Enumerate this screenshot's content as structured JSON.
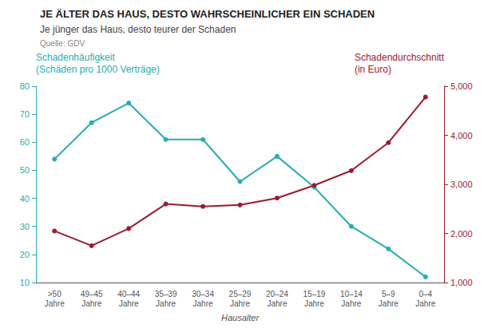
{
  "chart_data": {
    "type": "line",
    "title": "JE ÄLTER DAS HAUS, DESTO WAHRSCHEINLICHER EIN SCHADEN",
    "subtitle": "Je jünger das Haus, desto teurer der Schaden",
    "source": "Quelle: GDV",
    "xlabel": "Hausalter",
    "categories": [
      ">50\nJahre",
      "49–45\nJahre",
      "40–44\nJahre",
      "35–39\nJahre",
      "30–34\nJahre",
      "25–29\nJahre",
      "20–24\nJahre",
      "15–19\nJahre",
      "10–14\nJahre",
      "5–9\nJahre",
      "0–4\nJahre"
    ],
    "series": [
      {
        "name": "Schadenhäufigkeit\n(Schäden pro 1000 Verträge)",
        "color": "#29ABB8",
        "marker": "circle",
        "values": [
          54,
          67,
          74,
          61,
          61,
          46,
          55,
          44,
          30,
          22,
          12
        ]
      },
      {
        "name": "Schadendurchschnitt\n(in Euro)",
        "color": "#9B1B30",
        "marker": "circle",
        "axis": "y2",
        "values": [
          2050,
          1750,
          2100,
          2600,
          2550,
          2580,
          2720,
          2980,
          3280,
          3850,
          4780
        ]
      }
    ],
    "ylim": [
      10,
      80
    ],
    "yticks": [
      10,
      20,
      30,
      40,
      50,
      60,
      70,
      80
    ],
    "y2lim": [
      1000,
      5000
    ],
    "y2ticks": [
      1000,
      2000,
      3000,
      4000,
      5000
    ],
    "grid": false
  }
}
